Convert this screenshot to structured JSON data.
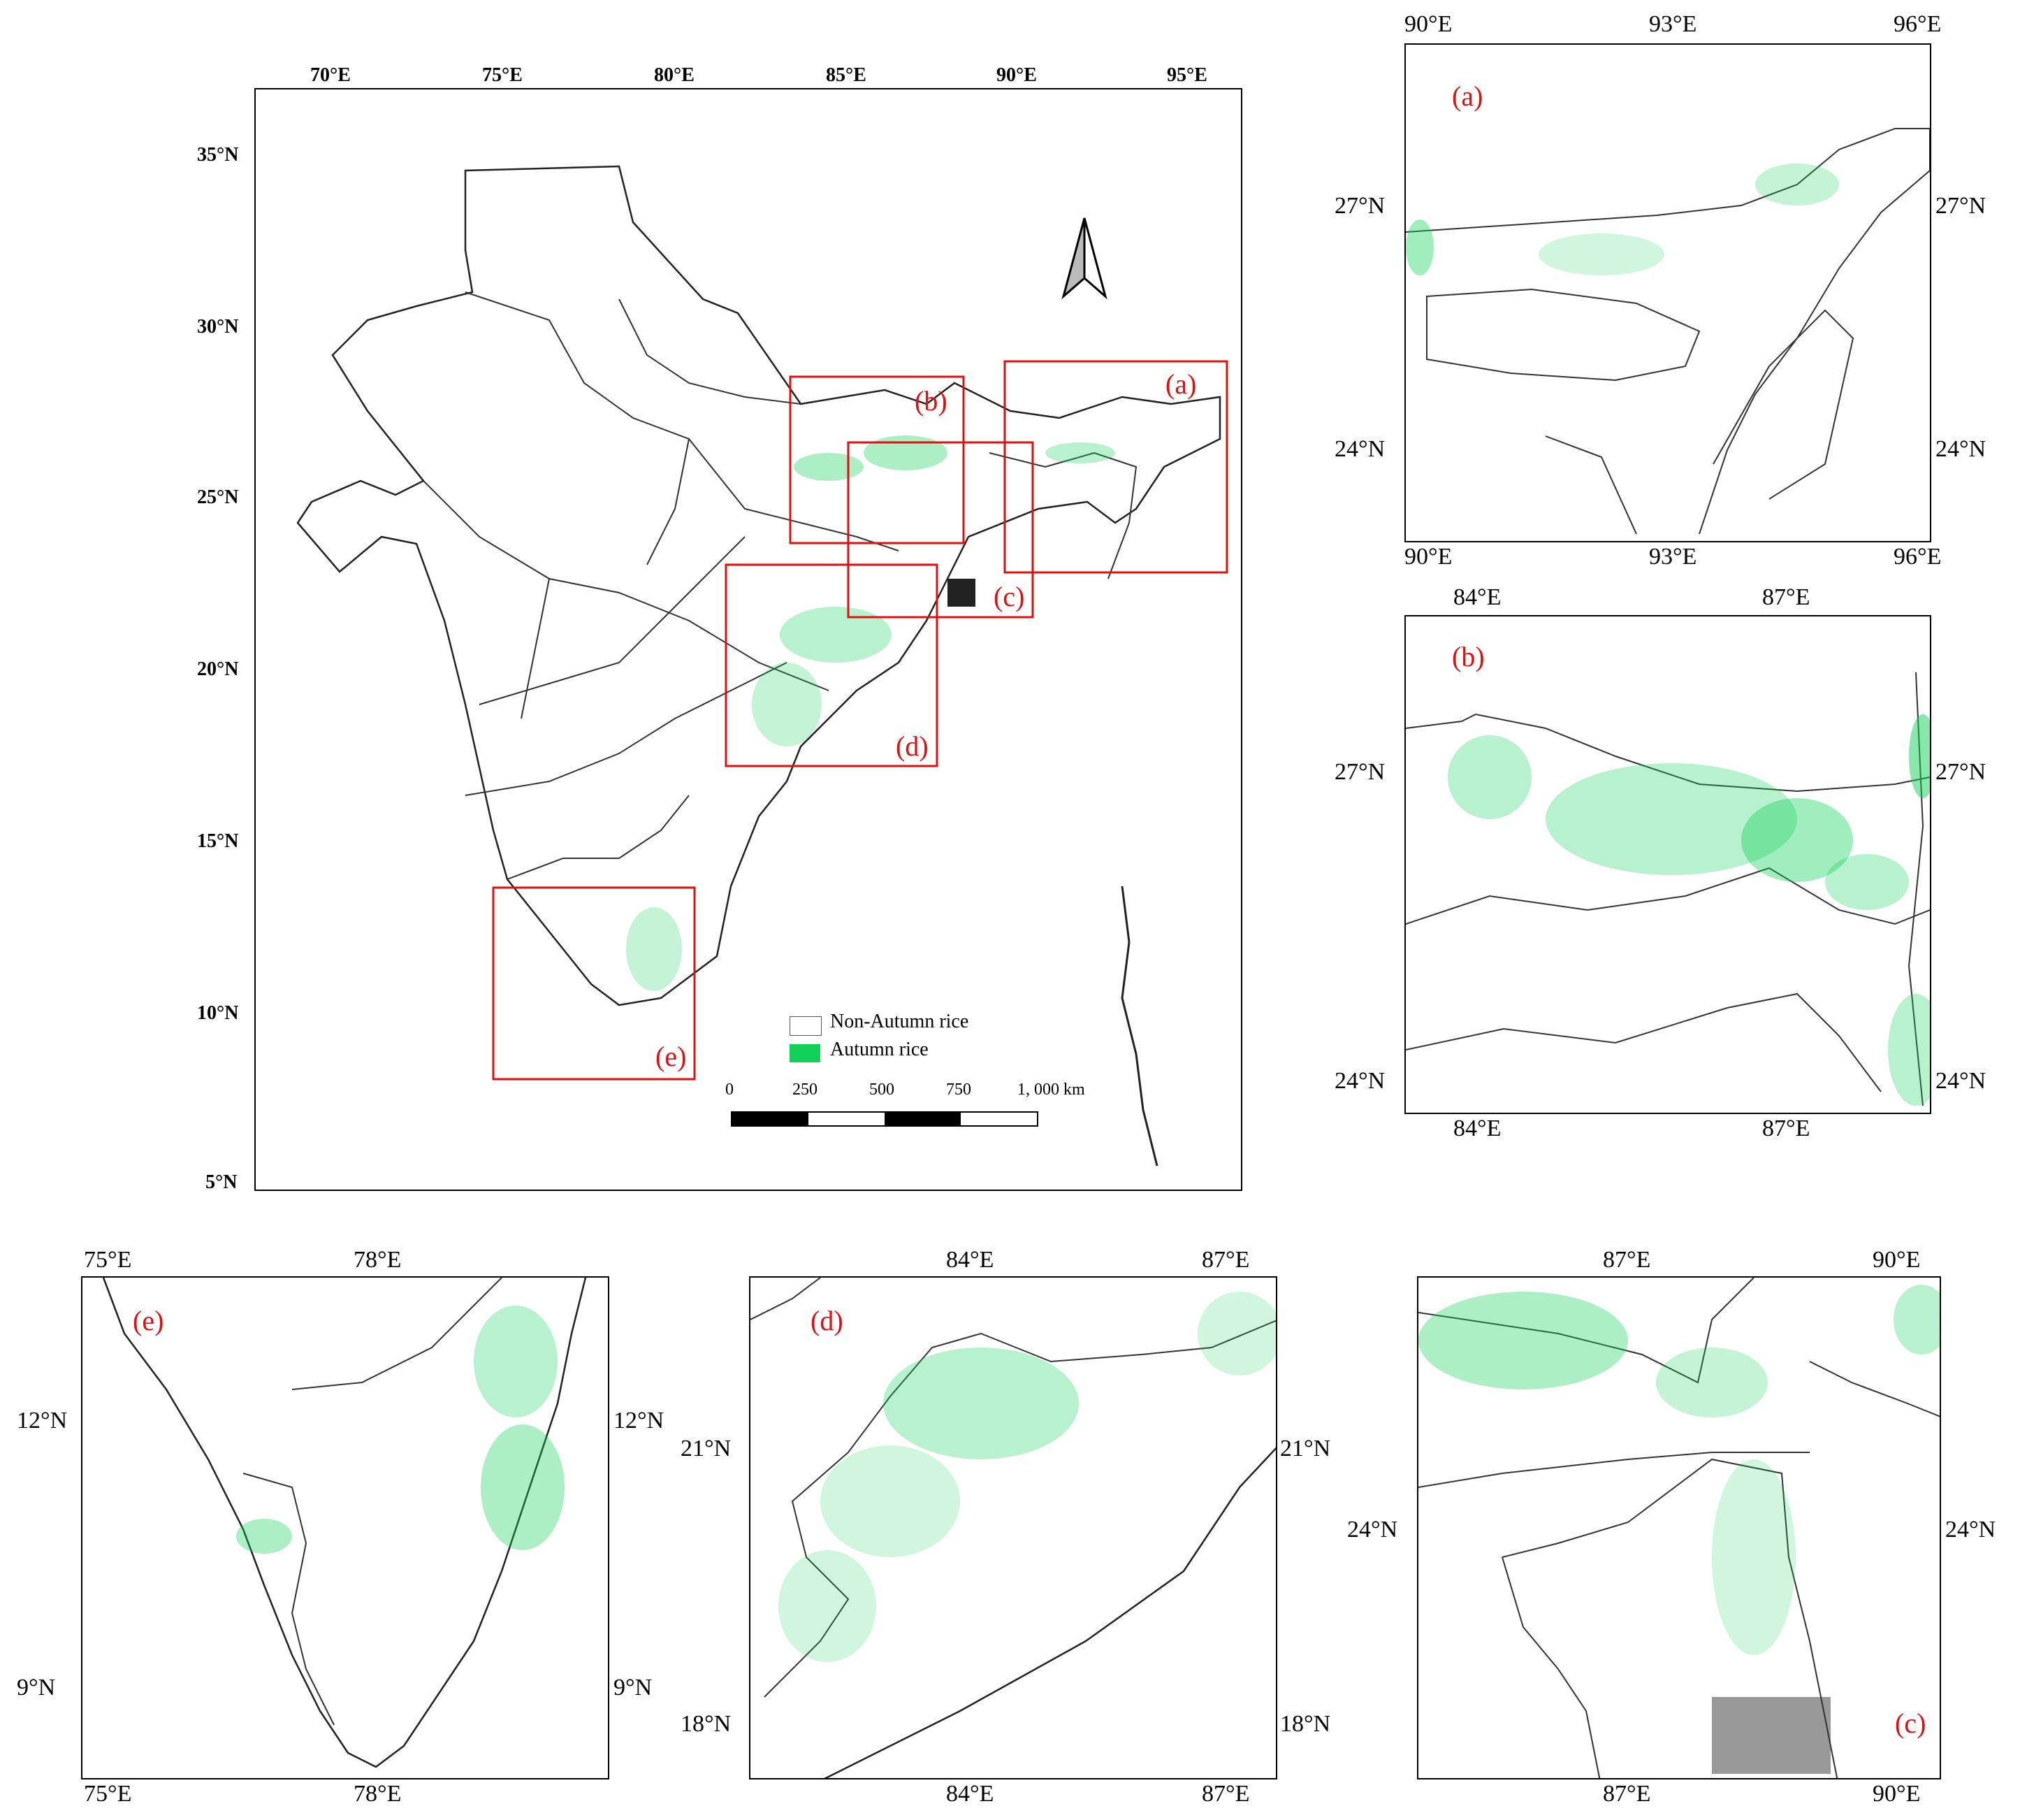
{
  "main_map": {
    "x_ticks": [
      "70°E",
      "75°E",
      "80°E",
      "85°E",
      "90°E",
      "95°E"
    ],
    "y_ticks": [
      "35°N",
      "30°N",
      "25°N",
      "20°N",
      "15°N",
      "10°N",
      "5°N"
    ],
    "boxes": [
      "(a)",
      "(b)",
      "(c)",
      "(d)",
      "(e)"
    ],
    "legend": [
      {
        "label": "Non-Autumn rice",
        "color": "#ffffff"
      },
      {
        "label": "Autumn rice",
        "color": "#12d15a"
      }
    ],
    "scale": {
      "labels": [
        "0",
        "250",
        "500",
        "750",
        "1, 000  km"
      ]
    }
  },
  "panel_a": {
    "label": "(a)",
    "x_ticks": [
      "90°E",
      "93°E",
      "96°E"
    ],
    "y_ticks": [
      "27°N",
      "24°N"
    ]
  },
  "panel_b": {
    "label": "(b)",
    "x_ticks": [
      "84°E",
      "87°E"
    ],
    "y_ticks": [
      "27°N",
      "24°N"
    ]
  },
  "panel_c": {
    "label": "(c)",
    "x_ticks": [
      "87°E",
      "90°E"
    ],
    "y_ticks": [
      "24°N"
    ]
  },
  "panel_d": {
    "label": "(d)",
    "x_ticks": [
      "84°E",
      "87°E"
    ],
    "y_ticks": [
      "21°N",
      "18°N"
    ]
  },
  "panel_e": {
    "label": "(e)",
    "x_ticks": [
      "75°E",
      "78°E"
    ],
    "y_ticks": [
      "12°N",
      "9°N"
    ]
  },
  "colors": {
    "autumn_rice": "#12d15a",
    "box": "#e01010",
    "boundary": "#333333"
  }
}
